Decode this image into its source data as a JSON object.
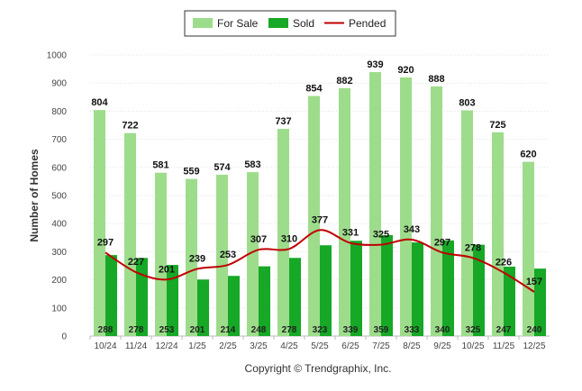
{
  "chart_data": {
    "type": "bar",
    "ylabel": "Number of Homes",
    "ylim": [
      0,
      1000
    ],
    "yticks": [
      0,
      100,
      200,
      300,
      400,
      500,
      600,
      700,
      800,
      900,
      1000
    ],
    "grid": true,
    "legend_position": "top-center",
    "categories": [
      "10/24",
      "11/24",
      "12/24",
      "1/25",
      "2/25",
      "3/25",
      "4/25",
      "5/25",
      "6/25",
      "7/25",
      "8/25",
      "9/25",
      "10/25",
      "11/25",
      "12/25"
    ],
    "series": [
      {
        "name": "For Sale",
        "type": "bar",
        "color": "#9ddc8b",
        "values": [
          804,
          722,
          581,
          559,
          574,
          583,
          737,
          854,
          882,
          939,
          920,
          888,
          803,
          725,
          620
        ]
      },
      {
        "name": "Sold",
        "type": "bar",
        "color": "#16a826",
        "values": [
          288,
          278,
          253,
          201,
          214,
          248,
          278,
          323,
          339,
          359,
          333,
          340,
          325,
          247,
          240
        ]
      },
      {
        "name": "Pended",
        "type": "line",
        "color": "#c00000",
        "values": [
          297,
          227,
          201,
          239,
          253,
          307,
          310,
          377,
          331,
          325,
          343,
          297,
          278,
          226,
          157
        ]
      }
    ]
  },
  "credit": "Copyright © Trendgraphix, Inc."
}
